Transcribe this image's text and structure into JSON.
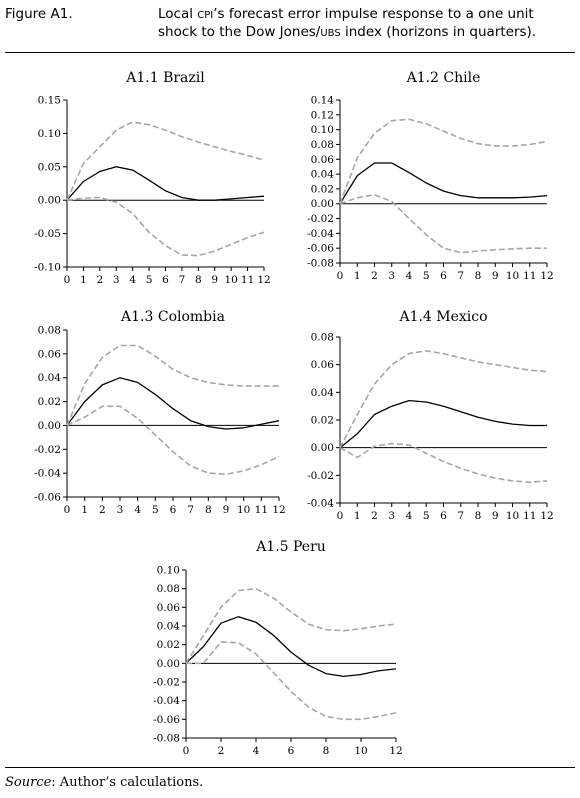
{
  "figure": {
    "label": "Figure A1.",
    "caption_part1": "Local ",
    "caption_sc1": "CPI",
    "caption_part2": "’s forecast error impulse response to a one unit shock to the Dow Jones/",
    "caption_sc2": "UBS",
    "caption_part3": " index (horizons in quarters)."
  },
  "source": {
    "label": "Source",
    "text": ": Author’s calculations."
  },
  "colors": {
    "response": "#000000",
    "bands": "#a6a6a6",
    "axis": "#000000"
  },
  "chart_data": [
    {
      "type": "line",
      "title": "A1.1 Brazil",
      "x": [
        0,
        1,
        2,
        3,
        4,
        5,
        6,
        7,
        8,
        9,
        10,
        11,
        12
      ],
      "xticks": [
        "0",
        "1",
        "2",
        "3",
        "4",
        "5",
        "6",
        "7",
        "8",
        "9",
        "10",
        "11",
        "12"
      ],
      "ylim": [
        -0.1,
        0.15
      ],
      "yticks": [
        "0.15",
        "0.10",
        "0.05",
        "0.00",
        "-0.05",
        "-0.10"
      ],
      "ytick_values": [
        0.15,
        0.1,
        0.05,
        0.0,
        -0.05,
        -0.1
      ],
      "series": [
        {
          "role": "response",
          "values": [
            0,
            0.028,
            0.043,
            0.05,
            0.045,
            0.03,
            0.014,
            0.004,
            0,
            0,
            0.002,
            0.004,
            0.006
          ]
        },
        {
          "role": "upper",
          "values": [
            0,
            0.055,
            0.08,
            0.105,
            0.117,
            0.113,
            0.105,
            0.095,
            0.087,
            0.08,
            0.073,
            0.067,
            0.06
          ]
        },
        {
          "role": "lower",
          "values": [
            0,
            0.003,
            0.004,
            -0.003,
            -0.02,
            -0.048,
            -0.068,
            -0.082,
            -0.083,
            -0.076,
            -0.066,
            -0.056,
            -0.048
          ]
        }
      ]
    },
    {
      "type": "line",
      "title": "A1.2 Chile",
      "x": [
        0,
        1,
        2,
        3,
        4,
        5,
        6,
        7,
        8,
        9,
        10,
        11,
        12
      ],
      "xticks": [
        "0",
        "1",
        "2",
        "3",
        "4",
        "5",
        "6",
        "7",
        "8",
        "9",
        "10",
        "11",
        "12"
      ],
      "ylim": [
        -0.08,
        0.14
      ],
      "yticks": [
        "0.14",
        "0.12",
        "0.10",
        "0.08",
        "0.06",
        "0.04",
        "0.02",
        "0.00",
        "-0.02",
        "-0.04",
        "-0.06",
        "-0.08"
      ],
      "ytick_values": [
        0.14,
        0.12,
        0.1,
        0.08,
        0.06,
        0.04,
        0.02,
        0.0,
        -0.02,
        -0.04,
        -0.06,
        -0.08
      ],
      "series": [
        {
          "role": "response",
          "values": [
            0,
            0.038,
            0.055,
            0.055,
            0.042,
            0.028,
            0.017,
            0.011,
            0.008,
            0.008,
            0.008,
            0.009,
            0.011
          ]
        },
        {
          "role": "upper",
          "values": [
            0,
            0.062,
            0.095,
            0.112,
            0.114,
            0.108,
            0.098,
            0.088,
            0.081,
            0.078,
            0.078,
            0.08,
            0.084
          ]
        },
        {
          "role": "lower",
          "values": [
            0,
            0.008,
            0.012,
            0.003,
            -0.02,
            -0.042,
            -0.06,
            -0.066,
            -0.064,
            -0.062,
            -0.061,
            -0.06,
            -0.06
          ]
        }
      ]
    },
    {
      "type": "line",
      "title": "A1.3 Colombia",
      "x": [
        0,
        1,
        2,
        3,
        4,
        5,
        6,
        7,
        8,
        9,
        10,
        11,
        12
      ],
      "xticks": [
        "0",
        "1",
        "2",
        "3",
        "4",
        "5",
        "6",
        "7",
        "8",
        "9",
        "10",
        "11",
        "12"
      ],
      "ylim": [
        -0.06,
        0.08
      ],
      "yticks": [
        "0.08",
        "0.06",
        "0.04",
        "0.02",
        "0.00",
        "-0.02",
        "-0.04",
        "-0.06"
      ],
      "ytick_values": [
        0.08,
        0.06,
        0.04,
        0.02,
        0.0,
        -0.02,
        -0.04,
        -0.06
      ],
      "series": [
        {
          "role": "response",
          "values": [
            0,
            0.02,
            0.034,
            0.04,
            0.036,
            0.026,
            0.014,
            0.004,
            -0.001,
            -0.003,
            -0.002,
            0.001,
            0.004
          ]
        },
        {
          "role": "upper",
          "values": [
            0,
            0.035,
            0.057,
            0.067,
            0.067,
            0.058,
            0.047,
            0.04,
            0.036,
            0.034,
            0.033,
            0.033,
            0.033
          ]
        },
        {
          "role": "lower",
          "values": [
            0,
            0.007,
            0.016,
            0.016,
            0.006,
            -0.008,
            -0.022,
            -0.034,
            -0.04,
            -0.041,
            -0.038,
            -0.033,
            -0.026
          ]
        }
      ]
    },
    {
      "type": "line",
      "title": "A1.4 Mexico",
      "x": [
        0,
        1,
        2,
        3,
        4,
        5,
        6,
        7,
        8,
        9,
        10,
        11,
        12
      ],
      "xticks": [
        "0",
        "1",
        "2",
        "3",
        "4",
        "5",
        "6",
        "7",
        "8",
        "9",
        "10",
        "11",
        "12"
      ],
      "ylim": [
        -0.04,
        0.08
      ],
      "yticks": [
        "0.08",
        "0.06",
        "0.04",
        "0.02",
        "0.00",
        "-0.02",
        "-0.04"
      ],
      "ytick_values": [
        0.08,
        0.06,
        0.04,
        0.02,
        0.0,
        -0.02,
        -0.04
      ],
      "series": [
        {
          "role": "response",
          "values": [
            0,
            0.01,
            0.024,
            0.03,
            0.034,
            0.033,
            0.03,
            0.026,
            0.022,
            0.019,
            0.017,
            0.016,
            0.016
          ]
        },
        {
          "role": "upper",
          "values": [
            0,
            0.024,
            0.046,
            0.06,
            0.068,
            0.07,
            0.068,
            0.065,
            0.062,
            0.06,
            0.058,
            0.056,
            0.055
          ]
        },
        {
          "role": "lower",
          "values": [
            0,
            -0.007,
            0.001,
            0.003,
            0.002,
            -0.004,
            -0.01,
            -0.015,
            -0.019,
            -0.022,
            -0.024,
            -0.025,
            -0.024
          ]
        }
      ]
    },
    {
      "type": "line",
      "title": "A1.5 Peru",
      "x": [
        0,
        1,
        2,
        3,
        4,
        5,
        6,
        7,
        8,
        9,
        10,
        11,
        12
      ],
      "xticks": [
        "0",
        "2",
        "4",
        "6",
        "8",
        "10",
        "12"
      ],
      "xtick_values": [
        0,
        2,
        4,
        6,
        8,
        10,
        12
      ],
      "ylim": [
        -0.08,
        0.1
      ],
      "yticks": [
        "0.10",
        "0.08",
        "0.06",
        "0.04",
        "0.02",
        "0.00",
        "-0.02",
        "-0.04",
        "-0.06",
        "-0.08"
      ],
      "ytick_values": [
        0.1,
        0.08,
        0.06,
        0.04,
        0.02,
        0.0,
        -0.02,
        -0.04,
        -0.06,
        -0.08
      ],
      "series": [
        {
          "role": "response",
          "values": [
            0,
            0.018,
            0.043,
            0.05,
            0.044,
            0.03,
            0.012,
            -0.002,
            -0.011,
            -0.014,
            -0.012,
            -0.008,
            -0.006
          ]
        },
        {
          "role": "upper",
          "values": [
            0,
            0.03,
            0.06,
            0.078,
            0.08,
            0.07,
            0.055,
            0.042,
            0.036,
            0.035,
            0.037,
            0.04,
            0.042
          ]
        },
        {
          "role": "lower",
          "values": [
            0,
            0.0,
            0.023,
            0.022,
            0.01,
            -0.01,
            -0.03,
            -0.047,
            -0.057,
            -0.06,
            -0.06,
            -0.057,
            -0.053
          ]
        }
      ]
    }
  ]
}
